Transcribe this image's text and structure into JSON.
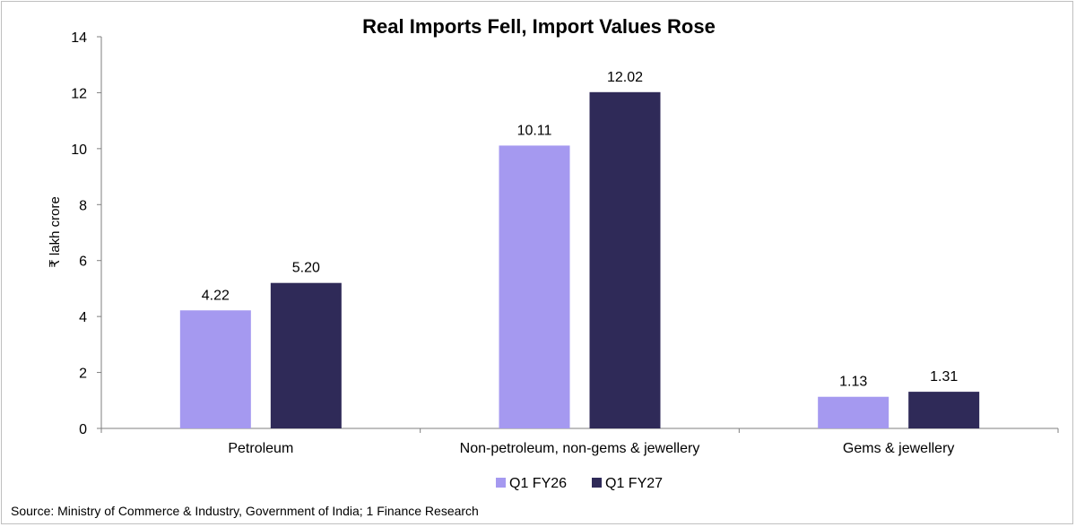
{
  "colors": {
    "series_1": "#a599f0",
    "series_2": "#2f2a58",
    "axis": "#7f7f7f"
  },
  "source_note": "Source: Ministry of Commerce & Industry, Government of India; 1 Finance Research",
  "chart_data": {
    "type": "bar",
    "title": "Real Imports Fell, Import Values Rose",
    "xlabel": "",
    "ylabel": "₹ lakh crore",
    "ylim": [
      0,
      14
    ],
    "yticks": [
      0,
      2,
      4,
      6,
      8,
      10,
      12,
      14
    ],
    "grid": false,
    "legend_position": "bottom",
    "categories": [
      "Petroleum",
      "Non-petroleum, non-gems & jewellery",
      "Gems & jewellery"
    ],
    "series": [
      {
        "name": "Q1 FY26",
        "values": [
          4.22,
          10.11,
          1.13
        ],
        "labels": [
          "4.22",
          "10.11",
          "1.13"
        ]
      },
      {
        "name": "Q1 FY27",
        "values": [
          5.2,
          12.02,
          1.31
        ],
        "labels": [
          "5.20",
          "12.02",
          "1.31"
        ]
      }
    ]
  }
}
